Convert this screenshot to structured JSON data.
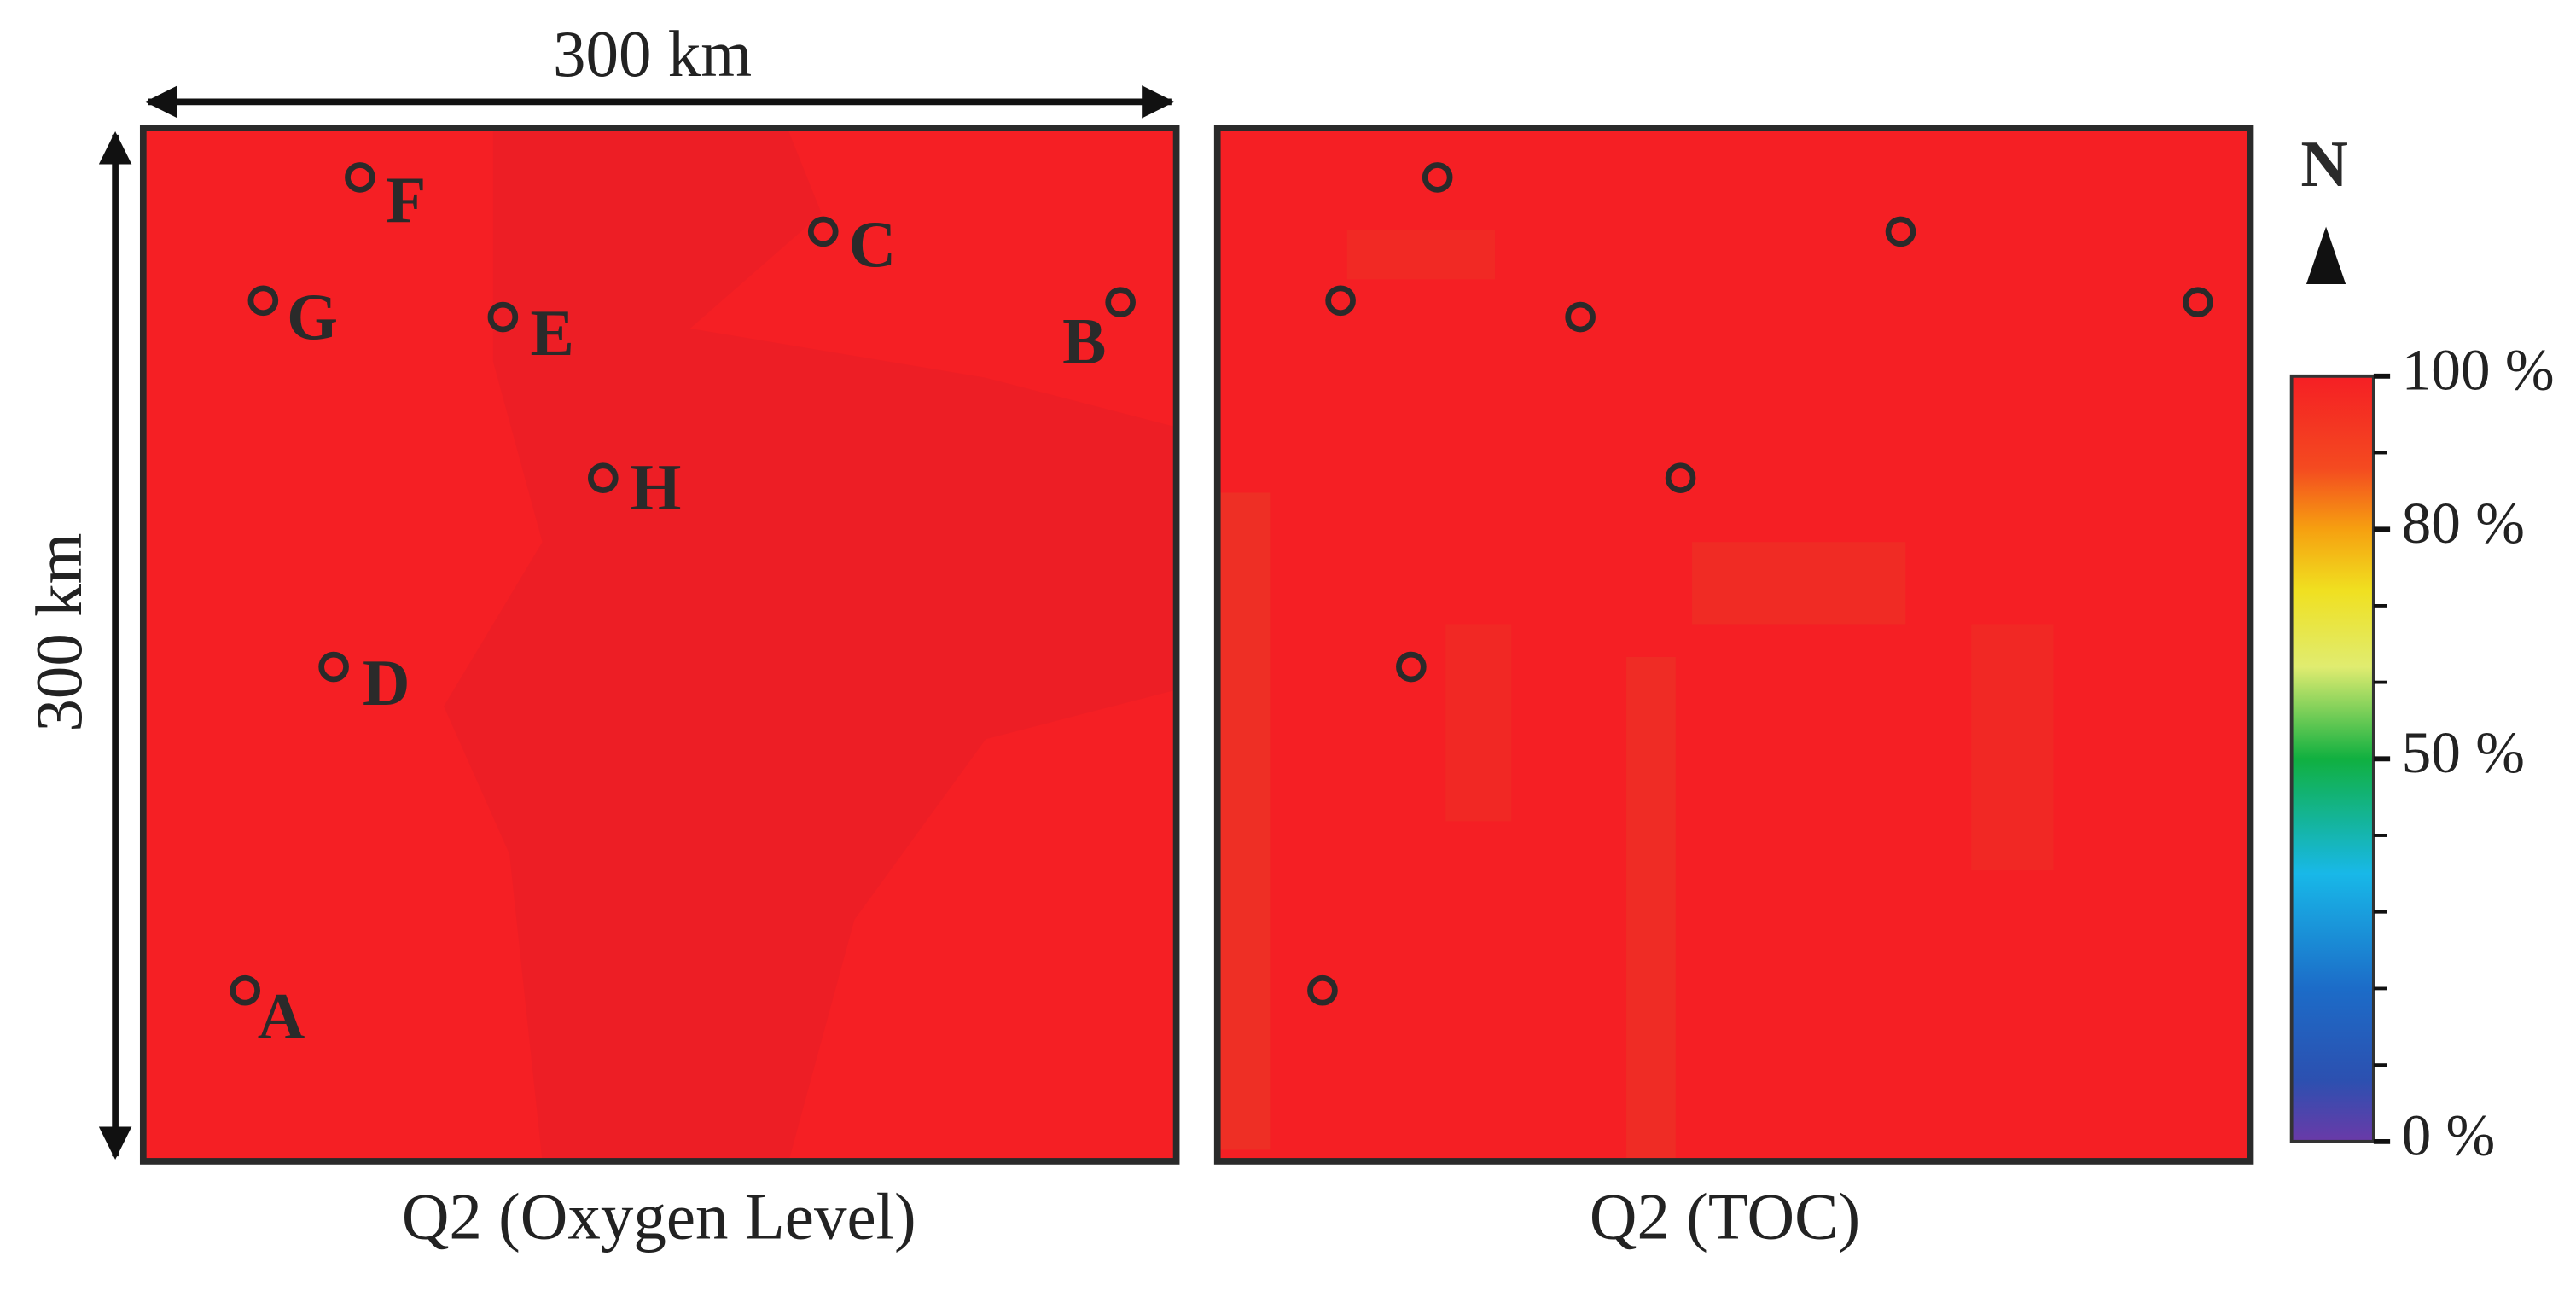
{
  "scale": {
    "x_label": "300 km",
    "y_label": "300 km"
  },
  "panels": [
    {
      "title": "Q2 (Oxygen Level)"
    },
    {
      "title": "Q2 (TOC)"
    }
  ],
  "sites": [
    {
      "label": "A"
    },
    {
      "label": "B"
    },
    {
      "label": "C"
    },
    {
      "label": "D"
    },
    {
      "label": "E"
    },
    {
      "label": "F"
    },
    {
      "label": "G"
    },
    {
      "label": "H"
    }
  ],
  "north": "N",
  "colorbar": {
    "lim": [
      0,
      100
    ],
    "ticks": [
      {
        "value": 100,
        "label": "100 %"
      },
      {
        "value": 80,
        "label": "80 %"
      },
      {
        "value": 50,
        "label": "50 %"
      },
      {
        "value": 0,
        "label": "0 %"
      }
    ],
    "minor_ticks": [
      10,
      20,
      30,
      40,
      60,
      70,
      90
    ]
  }
}
